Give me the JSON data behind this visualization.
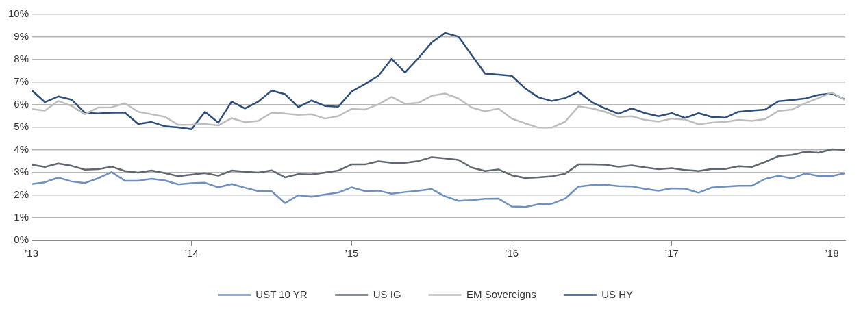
{
  "chart_data": {
    "type": "line",
    "x": [
      "2013-01",
      "2013-02",
      "2013-03",
      "2013-04",
      "2013-05",
      "2013-06",
      "2013-07",
      "2013-08",
      "2013-09",
      "2013-10",
      "2013-11",
      "2013-12",
      "2014-01",
      "2014-02",
      "2014-03",
      "2014-04",
      "2014-05",
      "2014-06",
      "2014-07",
      "2014-08",
      "2014-09",
      "2014-10",
      "2014-11",
      "2014-12",
      "2015-01",
      "2015-02",
      "2015-03",
      "2015-04",
      "2015-05",
      "2015-06",
      "2015-07",
      "2015-08",
      "2015-09",
      "2015-10",
      "2015-11",
      "2015-12",
      "2016-01",
      "2016-02",
      "2016-03",
      "2016-04",
      "2016-05",
      "2016-06",
      "2016-07",
      "2016-08",
      "2016-09",
      "2016-10",
      "2016-11",
      "2016-12",
      "2017-01",
      "2017-02",
      "2017-03",
      "2017-04",
      "2017-05",
      "2017-06",
      "2017-07",
      "2017-08",
      "2017-09",
      "2017-10",
      "2017-11",
      "2017-12",
      "2018-01",
      "2018-02"
    ],
    "xlim": [
      "2013-01",
      "2018-02"
    ],
    "xticks": [
      {
        "value": "2013-01",
        "label": "’13"
      },
      {
        "value": "2014-01",
        "label": "’14"
      },
      {
        "value": "2015-01",
        "label": "’15"
      },
      {
        "value": "2016-01",
        "label": "’16"
      },
      {
        "value": "2017-01",
        "label": "’17"
      },
      {
        "value": "2018-01",
        "label": "’18"
      }
    ],
    "ylim": [
      0,
      10
    ],
    "yticks": [
      {
        "value": 0,
        "label": "0%"
      },
      {
        "value": 1,
        "label": "1%"
      },
      {
        "value": 2,
        "label": "2%"
      },
      {
        "value": 3,
        "label": "3%"
      },
      {
        "value": 4,
        "label": "4%"
      },
      {
        "value": 5,
        "label": "5%"
      },
      {
        "value": 6,
        "label": "6%"
      },
      {
        "value": 7,
        "label": "7%"
      },
      {
        "value": 8,
        "label": "8%"
      },
      {
        "value": 9,
        "label": "9%"
      },
      {
        "value": 10,
        "label": "10%"
      }
    ],
    "grid": "y",
    "legend": "bottom",
    "marker": "none",
    "line_style": "solid",
    "series": [
      {
        "name": "UST 10 YR",
        "color": "#6f8fbe",
        "values": [
          2.49,
          2.57,
          2.78,
          2.61,
          2.54,
          2.75,
          3.02,
          2.64,
          2.64,
          2.73,
          2.65,
          2.48,
          2.53,
          2.55,
          2.35,
          2.49,
          2.33,
          2.18,
          2.18,
          1.65,
          2.0,
          1.93,
          2.03,
          2.12,
          2.35,
          2.18,
          2.2,
          2.07,
          2.14,
          2.2,
          2.27,
          1.95,
          1.75,
          1.78,
          1.84,
          1.85,
          1.5,
          1.48,
          1.6,
          1.62,
          1.85,
          2.38,
          2.45,
          2.46,
          2.4,
          2.39,
          2.28,
          2.2,
          2.3,
          2.29,
          2.11,
          2.34,
          2.38,
          2.42,
          2.42,
          2.72,
          2.86,
          2.74,
          2.96,
          2.85,
          2.85,
          2.97
        ]
      },
      {
        "name": "US IG",
        "color": "#5f6770",
        "values": [
          3.35,
          3.25,
          3.4,
          3.3,
          3.13,
          3.15,
          3.26,
          3.07,
          3.0,
          3.09,
          2.98,
          2.84,
          2.91,
          2.98,
          2.86,
          3.09,
          3.04,
          3.0,
          3.1,
          2.79,
          2.93,
          2.92,
          3.0,
          3.09,
          3.36,
          3.36,
          3.5,
          3.43,
          3.43,
          3.51,
          3.68,
          3.63,
          3.56,
          3.22,
          3.07,
          3.14,
          2.88,
          2.76,
          2.79,
          2.83,
          2.95,
          3.36,
          3.36,
          3.35,
          3.26,
          3.32,
          3.23,
          3.15,
          3.2,
          3.11,
          3.07,
          3.16,
          3.16,
          3.28,
          3.25,
          3.47,
          3.73,
          3.78,
          3.92,
          3.88,
          4.03,
          4.0
        ]
      },
      {
        "name": "EM Sovereigns",
        "color": "#bdbdbd",
        "values": [
          5.81,
          5.74,
          6.17,
          5.95,
          5.58,
          5.88,
          5.89,
          6.07,
          5.69,
          5.58,
          5.47,
          5.11,
          5.12,
          5.15,
          5.09,
          5.41,
          5.23,
          5.29,
          5.65,
          5.61,
          5.55,
          5.58,
          5.39,
          5.5,
          5.82,
          5.79,
          6.02,
          6.35,
          6.04,
          6.09,
          6.4,
          6.5,
          6.28,
          5.88,
          5.71,
          5.83,
          5.39,
          5.18,
          4.99,
          4.99,
          5.25,
          5.93,
          5.84,
          5.69,
          5.46,
          5.49,
          5.33,
          5.26,
          5.39,
          5.35,
          5.14,
          5.21,
          5.24,
          5.33,
          5.29,
          5.37,
          5.73,
          5.79,
          6.07,
          6.3,
          6.54,
          6.21
        ]
      },
      {
        "name": "US HY",
        "color": "#2e4e7a",
        "values": [
          6.65,
          6.12,
          6.37,
          6.23,
          5.65,
          5.61,
          5.65,
          5.65,
          5.15,
          5.24,
          5.05,
          5.0,
          4.92,
          5.69,
          5.21,
          6.14,
          5.84,
          6.14,
          6.63,
          6.47,
          5.9,
          6.19,
          5.95,
          5.92,
          6.59,
          6.92,
          7.28,
          8.03,
          7.43,
          8.06,
          8.76,
          9.18,
          9.02,
          8.2,
          7.38,
          7.33,
          7.28,
          6.73,
          6.33,
          6.17,
          6.3,
          6.58,
          6.12,
          5.84,
          5.6,
          5.84,
          5.63,
          5.49,
          5.63,
          5.42,
          5.63,
          5.46,
          5.43,
          5.69,
          5.74,
          5.79,
          6.16,
          6.21,
          6.28,
          6.44,
          6.5,
          6.23
        ]
      }
    ]
  }
}
